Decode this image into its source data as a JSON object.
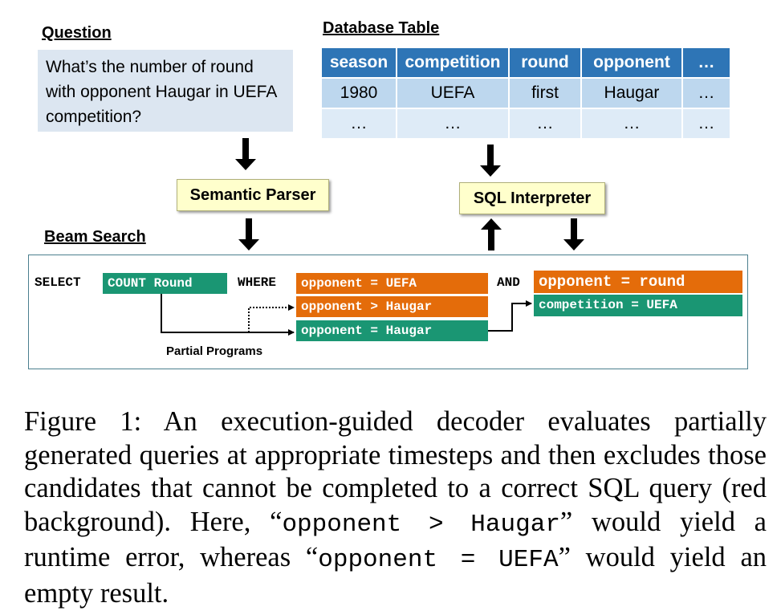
{
  "question": {
    "heading": "Question",
    "text": "What’s the number of round with opponent Haugar in UEFA competition?"
  },
  "database": {
    "heading": "Database Table",
    "headers": [
      "season",
      "competition",
      "round",
      "opponent",
      "…"
    ],
    "rows": [
      [
        "1980",
        "UEFA",
        "first",
        "Haugar",
        "…"
      ],
      [
        "…",
        "…",
        "…",
        "…",
        "…"
      ]
    ]
  },
  "semantic_parser": {
    "label": "Semantic Parser"
  },
  "sql_interpreter": {
    "label": "SQL Interpreter"
  },
  "beam_search": {
    "heading": "Beam Search",
    "select_kw": "SELECT",
    "count_chip": "COUNT Round",
    "where_kw": "WHERE",
    "and_kw": "AND",
    "candidates": [
      "opponent = UEFA",
      "opponent > Haugar",
      "opponent = Haugar"
    ],
    "next_candidates": [
      "opponent = round",
      "competition = UEFA"
    ],
    "partial_programs_label": "Partial Programs",
    "colors": {
      "valid": "#1a9673",
      "rejected": "#e46c0a"
    }
  },
  "caption": {
    "prefix": "Figure 1: An execution-guided decoder evaluates partially generated queries at appropriate timesteps and then excludes those candidates that cannot be completed to a correct SQL query (red background). Here, “",
    "code1": "opponent > Haugar",
    "mid": "” would yield a runtime error, whereas “",
    "code2": "opponent = UEFA",
    "suffix": "” would yield an empty result."
  }
}
